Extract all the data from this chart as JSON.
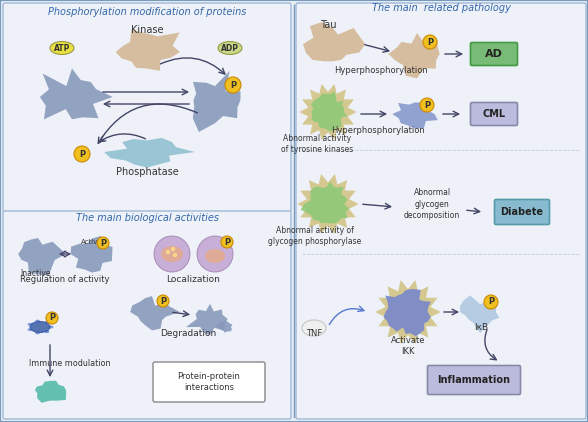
{
  "bg_color": "#e8eef5",
  "panel_border": "#a0b8d8",
  "outer_border": "#7799bb",
  "title_color": "#3366aa",
  "arrow_color": "#444466",
  "p_circle_color": "#f0c020",
  "atp_color": "#e8e040",
  "adp_color": "#c8d888",
  "protein_blue": "#8899cc",
  "kinase_color": "#d4b896",
  "phosphatase_color": "#90c0d0",
  "spike_outer": "#d4c890",
  "spike_inner": "#90c878",
  "titles": {
    "top_left": "Phosphorylation modification of proteins",
    "top_right": "The main  related pathology",
    "bottom_left": "The main biological activities"
  }
}
